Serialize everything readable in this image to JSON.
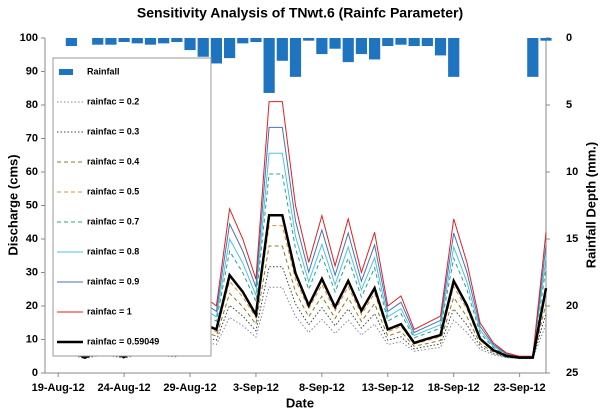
{
  "chart_data": {
    "type": "line",
    "title": "Sensitivity Analysis of TNwt.6 (Rainfc Parameter)",
    "x_label": "Date",
    "y_label": "Discharge (cms)",
    "y2_label": "Rainfall Depth (mm.)",
    "x": [
      "2012-08-20",
      "2012-08-21",
      "2012-08-22",
      "2012-08-23",
      "2012-08-24",
      "2012-08-25",
      "2012-08-26",
      "2012-08-27",
      "2012-08-28",
      "2012-08-29",
      "2012-08-30",
      "2012-08-31",
      "2012-09-01",
      "2012-09-02",
      "2012-09-03",
      "2012-09-04",
      "2012-09-05",
      "2012-09-06",
      "2012-09-07",
      "2012-09-08",
      "2012-09-09",
      "2012-09-10",
      "2012-09-11",
      "2012-09-12",
      "2012-09-13",
      "2012-09-14",
      "2012-09-15",
      "2012-09-16",
      "2012-09-17",
      "2012-09-18",
      "2012-09-19",
      "2012-09-20",
      "2012-09-21",
      "2012-09-22",
      "2012-09-23",
      "2012-09-24",
      "2012-09-25"
    ],
    "xlim": [
      "2012-08-18",
      "2012-09-25"
    ],
    "xticks": [
      {
        "value": "2012-08-19",
        "label": "19-Aug-12"
      },
      {
        "value": "2012-08-24",
        "label": "24-Aug-12"
      },
      {
        "value": "2012-08-29",
        "label": "29-Aug-12"
      },
      {
        "value": "2012-09-03",
        "label": "3-Sep-12"
      },
      {
        "value": "2012-09-08",
        "label": "8-Sep-12"
      },
      {
        "value": "2012-09-13",
        "label": "13-Sep-12"
      },
      {
        "value": "2012-09-18",
        "label": "18-Sep-12"
      },
      {
        "value": "2012-09-23",
        "label": "23-Sep-12"
      }
    ],
    "ylim": [
      0,
      100
    ],
    "yticks": [
      0,
      10,
      20,
      30,
      40,
      50,
      60,
      70,
      80,
      90,
      100
    ],
    "y2lim": [
      0,
      25
    ],
    "y2ticks": [
      0,
      5,
      10,
      15,
      20,
      25
    ],
    "y2_inverted": true,
    "legend": "upper left",
    "series": [
      {
        "name": "Rainfall",
        "type": "bar",
        "axis": "y2",
        "color": "#1f74c0",
        "values": [
          0.6,
          0,
          0.5,
          0.5,
          0.3,
          0.4,
          0.5,
          0.4,
          0.3,
          0.9,
          1.4,
          1.9,
          1.5,
          0.4,
          0.3,
          4.1,
          1.7,
          2.9,
          0.2,
          1.2,
          0.8,
          1.8,
          1.2,
          1.6,
          0.6,
          0.5,
          0.6,
          0.6,
          1.3,
          2.9,
          0,
          0,
          0,
          0,
          0,
          2.9,
          0.2
        ]
      },
      {
        "name": "rainfac = 0.2",
        "color": "#7a8aa0",
        "dash": "dotted",
        "values": [
          5.4,
          4.3,
          5.1,
          5.1,
          4.4,
          5.4,
          5.7,
          5.1,
          4.8,
          7.1,
          9.3,
          8.5,
          16.6,
          14.1,
          10.7,
          25.6,
          25.6,
          16.9,
          12.1,
          16,
          11.8,
          15.8,
          11.3,
          14.6,
          8.5,
          9.3,
          6.5,
          7.1,
          7.6,
          15.8,
          12.1,
          7.1,
          5.4,
          4.6,
          4.3,
          4.3,
          14.6
        ]
      },
      {
        "name": "rainfac = 0.3",
        "color": "#404040",
        "dash": "dotted",
        "values": [
          5.8,
          4.4,
          5.4,
          5.4,
          4.5,
          5.8,
          6.2,
          5.4,
          5.1,
          8,
          10.8,
          9.8,
          20.2,
          17,
          12.6,
          31.7,
          31.7,
          20.6,
          14.4,
          19.5,
          14.1,
          19.1,
          13.4,
          17.7,
          9.8,
          10.8,
          7.2,
          8,
          8.7,
          19.1,
          14.4,
          8,
          5.8,
          4.7,
          4.4,
          4.4,
          17.7
        ]
      },
      {
        "name": "rainfac = 0.4",
        "color": "#8a7a2a",
        "dash": "dashed",
        "values": [
          6.2,
          4.4,
          5.8,
          5.8,
          4.7,
          6.2,
          6.6,
          5.8,
          5.3,
          8.8,
          12.4,
          11,
          23.8,
          19.8,
          14.6,
          37.9,
          37.9,
          24.2,
          16.8,
          22.9,
          16.3,
          22.5,
          15.4,
          20.7,
          11,
          12.4,
          8,
          8.8,
          9.7,
          22.5,
          16.8,
          8.8,
          6.2,
          4.9,
          4.4,
          4.4,
          20.7
        ]
      },
      {
        "name": "rainfac = 0.5",
        "color": "#e08a30",
        "dash": "dashed",
        "values": [
          6.6,
          4.5,
          6.1,
          6.1,
          4.8,
          6.6,
          7.1,
          6.1,
          5.6,
          9.7,
          13.9,
          12.3,
          27.4,
          22.7,
          16.5,
          44,
          44,
          27.9,
          19.1,
          26.4,
          18.6,
          25.8,
          17.5,
          23.8,
          12.3,
          13.9,
          8.7,
          9.7,
          10.8,
          25.8,
          19.1,
          9.7,
          6.6,
          5,
          4.5,
          4.5,
          23.8
        ]
      },
      {
        "name": "rainfac = 0.7",
        "color": "#2aa08a",
        "dash": "dashed",
        "values": [
          7.6,
          4.7,
          6.9,
          6.9,
          5.1,
          7.6,
          8.3,
          6.9,
          6.2,
          11.9,
          17.7,
          15.5,
          36.4,
          29.9,
          21.3,
          59.4,
          59.4,
          37.1,
          24.9,
          35,
          24.2,
          34.2,
          22.7,
          31.4,
          15.5,
          17.7,
          10.5,
          11.9,
          13.4,
          34.2,
          24.9,
          11.9,
          7.6,
          5.4,
          4.7,
          4.7,
          31.4
        ]
      },
      {
        "name": "rainfac = 0.8",
        "color": "#4bc3e0",
        "dash": "solid",
        "values": [
          8,
          4.8,
          7.2,
          7.2,
          5.2,
          8,
          8.8,
          7.2,
          6.4,
          12.8,
          19.2,
          16.8,
          40,
          32.8,
          23.2,
          65.6,
          65.6,
          40.8,
          27.2,
          38.4,
          26.4,
          37.6,
          24.8,
          34.4,
          16.8,
          19.2,
          11.2,
          12.8,
          14.4,
          37.6,
          27.2,
          12.8,
          8,
          5.6,
          4.8,
          4.8,
          34.4
        ]
      },
      {
        "name": "rainfac = 0.9",
        "color": "#4a70b8",
        "dash": "solid",
        "values": [
          8.5,
          4.9,
          7.6,
          7.6,
          5.4,
          8.5,
          9.4,
          7.6,
          6.7,
          13.9,
          21.1,
          18.4,
          44.5,
          36.4,
          25.6,
          73.3,
          73.3,
          45.4,
          30.1,
          42.7,
          29.2,
          41.8,
          27.4,
          38.2,
          18.4,
          21.1,
          12.1,
          13.9,
          15.7,
          41.8,
          30.1,
          13.9,
          8.5,
          5.8,
          4.9,
          4.9,
          38.2
        ]
      },
      {
        "name": "rainfac = 1",
        "color": "#e02020",
        "dash": "solid",
        "values": [
          9,
          5,
          8,
          8,
          5.5,
          9,
          10,
          8,
          7,
          15,
          23,
          20,
          49,
          40,
          28,
          81,
          81,
          50,
          33,
          47,
          32,
          46,
          30,
          42,
          20,
          23,
          13,
          15,
          17,
          46,
          33,
          15,
          9,
          6,
          5,
          5,
          42
        ]
      },
      {
        "name": "rainfac = 0.59049",
        "color": "#000000",
        "dash": "solid",
        "line_width": 2.5,
        "values": [
          6.8,
          4.6,
          6.2,
          6.2,
          4.8,
          6.8,
          7.4,
          6.2,
          5.7,
          10.2,
          14.6,
          13,
          29.2,
          24.2,
          17.4,
          47.1,
          47.1,
          29.8,
          20.2,
          28.1,
          19.7,
          27.5,
          18.6,
          25.3,
          13,
          14.6,
          9,
          10.2,
          11.3,
          27.5,
          20.2,
          10.2,
          6.8,
          5.1,
          4.6,
          4.6,
          25.3
        ]
      }
    ]
  }
}
